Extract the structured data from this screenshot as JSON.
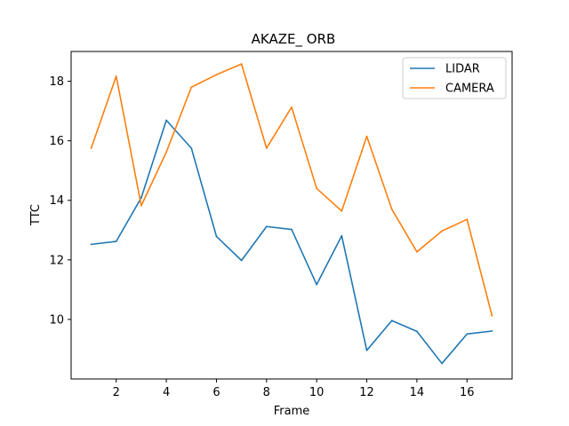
{
  "chart_data": {
    "type": "line",
    "title": "AKAZE_ ORB",
    "xlabel": "Frame",
    "ylabel": "TTC",
    "x": [
      1,
      2,
      3,
      4,
      5,
      6,
      7,
      8,
      9,
      10,
      11,
      12,
      13,
      14,
      15,
      16,
      17
    ],
    "xlim": [
      0.2,
      17.8
    ],
    "ylim": [
      8.0,
      19.0
    ],
    "xticks": [
      2,
      4,
      6,
      8,
      10,
      12,
      14,
      16
    ],
    "yticks": [
      10,
      12,
      14,
      16,
      18
    ],
    "grid": false,
    "legend_position": "top-right",
    "series": [
      {
        "name": "LIDAR",
        "color": "#1f77b4",
        "values": [
          12.52,
          12.62,
          14.09,
          16.69,
          15.75,
          12.79,
          11.98,
          13.12,
          13.02,
          11.17,
          12.81,
          8.96,
          9.96,
          9.6,
          8.52,
          9.51,
          9.61
        ]
      },
      {
        "name": "CAMERA",
        "color": "#ff7f0e",
        "values": [
          15.75,
          18.17,
          13.82,
          15.62,
          17.8,
          18.22,
          18.58,
          15.75,
          17.13,
          14.4,
          13.64,
          16.15,
          13.7,
          12.27,
          12.97,
          13.36,
          10.12
        ]
      }
    ]
  }
}
